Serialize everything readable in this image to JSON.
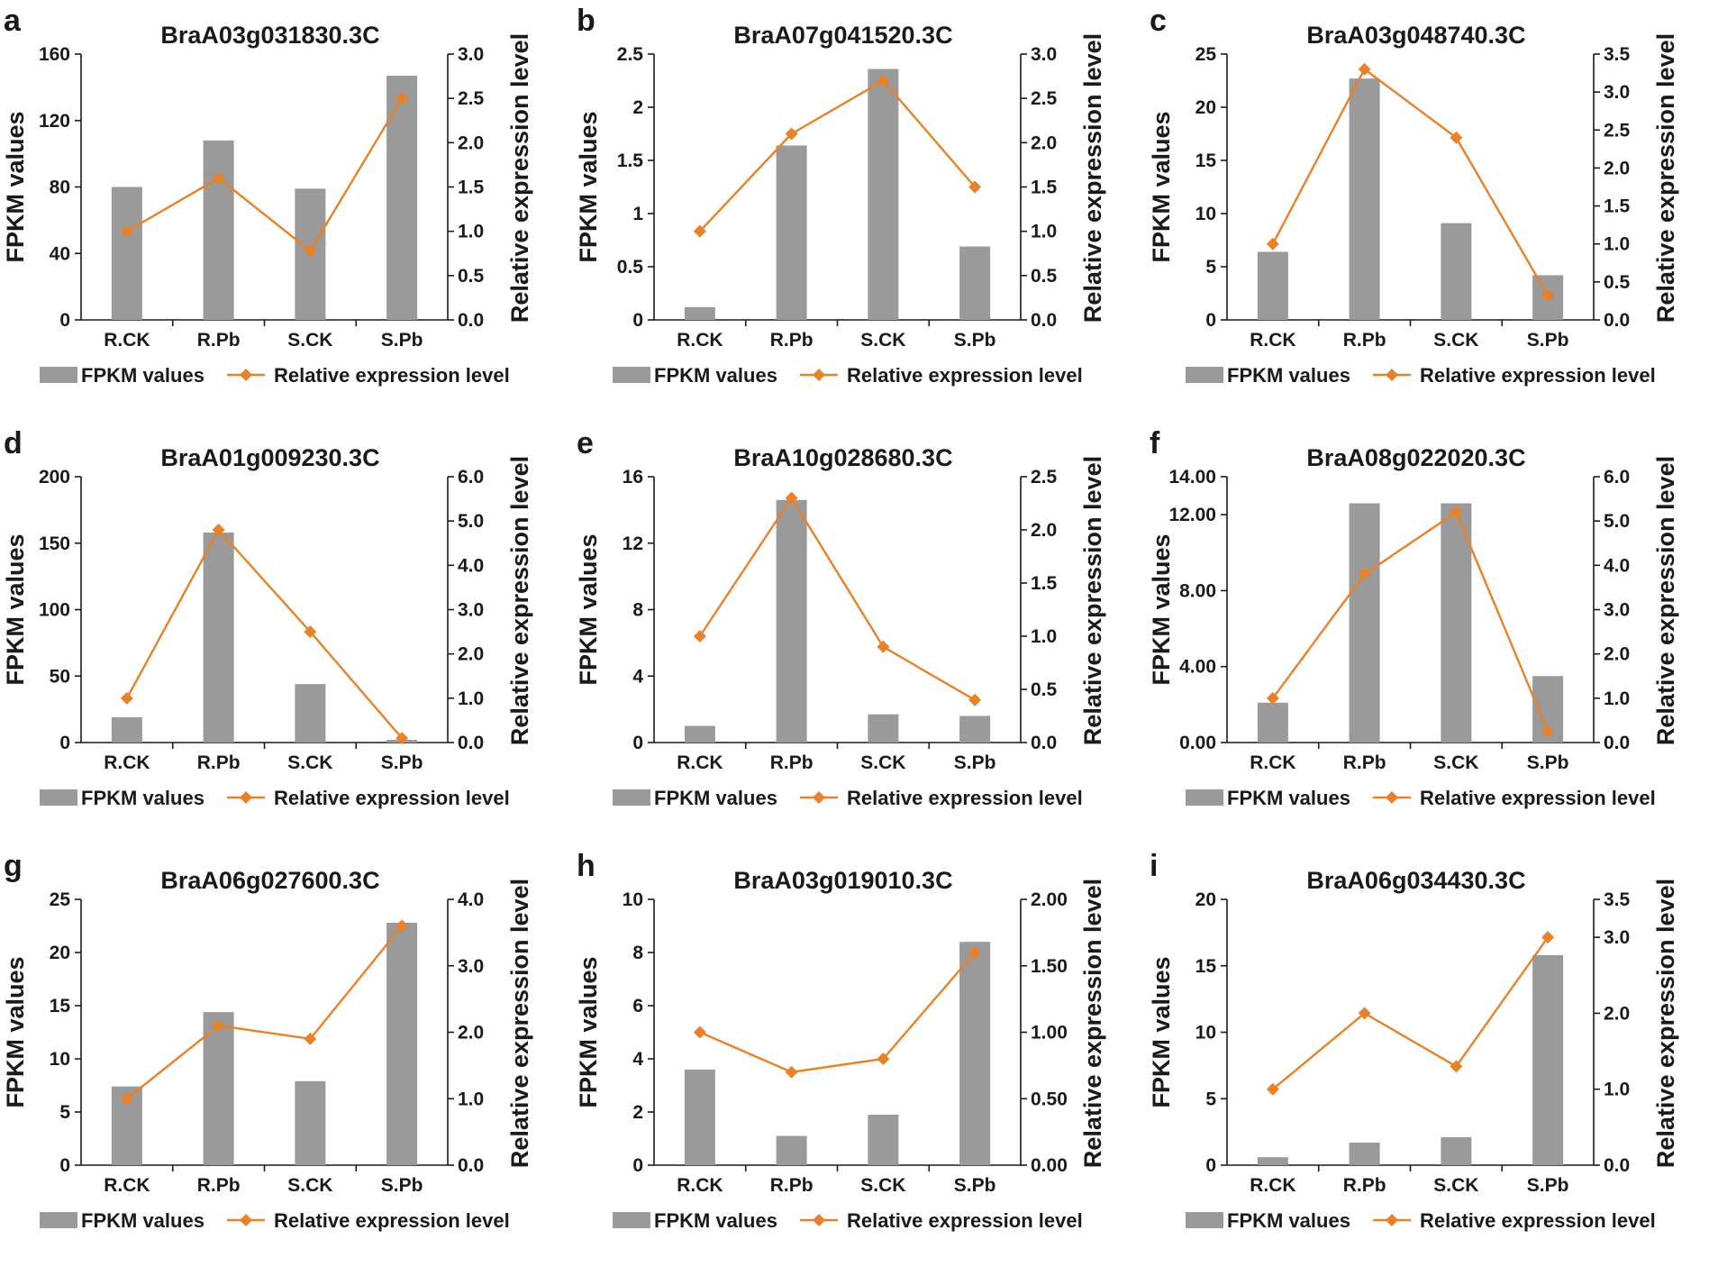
{
  "colors": {
    "bar": "#9a9a9a",
    "line": "#e8822a",
    "axis": "#1a1a1a"
  },
  "legend": {
    "bar_label": "FPKM values",
    "line_label": "Relative expression level"
  },
  "axis_labels": {
    "left": "FPKM values",
    "right": "Relative expression level"
  },
  "chart_data": [
    {
      "letter": "a",
      "type": "bar+line",
      "title": "BraA03g031830.3C",
      "categories": [
        "R.CK",
        "R.Pb",
        "S.CK",
        "S.Pb"
      ],
      "ylabel": "FPKM values",
      "y2label": "Relative expression level",
      "ylim": [
        0,
        160
      ],
      "yticks": [
        "0",
        "40",
        "80",
        "120",
        "160"
      ],
      "y2lim": [
        0,
        3
      ],
      "y2ticks": [
        "0.0",
        "0.5",
        "1.0",
        "1.5",
        "2.0",
        "2.5",
        "3.0"
      ],
      "series": [
        {
          "name": "FPKM values",
          "type": "bar",
          "values": [
            80,
            108,
            79,
            147
          ]
        },
        {
          "name": "Relative expression level",
          "type": "line",
          "values": [
            1.0,
            1.6,
            0.78,
            2.5
          ]
        }
      ]
    },
    {
      "letter": "b",
      "type": "bar+line",
      "title": "BraA07g041520.3C",
      "categories": [
        "R.CK",
        "R.Pb",
        "S.CK",
        "S.Pb"
      ],
      "ylabel": "FPKM values",
      "y2label": "Relative expression level",
      "ylim": [
        0,
        2.5
      ],
      "yticks": [
        "0",
        "0.5",
        "1",
        "1.5",
        "2",
        "2.5"
      ],
      "y2lim": [
        0,
        3
      ],
      "y2ticks": [
        "0.0",
        "0.5",
        "1.0",
        "1.5",
        "2.0",
        "2.5",
        "3.0"
      ],
      "series": [
        {
          "name": "FPKM values",
          "type": "bar",
          "values": [
            0.12,
            1.64,
            2.36,
            0.69
          ]
        },
        {
          "name": "Relative expression level",
          "type": "line",
          "values": [
            1.0,
            2.1,
            2.7,
            1.5
          ]
        }
      ]
    },
    {
      "letter": "c",
      "type": "bar+line",
      "title": "BraA03g048740.3C",
      "categories": [
        "R.CK",
        "R.Pb",
        "S.CK",
        "S.Pb"
      ],
      "ylabel": "FPKM values",
      "y2label": "Relative expression level",
      "ylim": [
        0,
        25
      ],
      "yticks": [
        "0",
        "5",
        "10",
        "15",
        "20",
        "25"
      ],
      "y2lim": [
        0,
        3.5
      ],
      "y2ticks": [
        "0.0",
        "0.5",
        "1.0",
        "1.5",
        "2.0",
        "2.5",
        "3.0",
        "3.5"
      ],
      "series": [
        {
          "name": "FPKM values",
          "type": "bar",
          "values": [
            6.4,
            22.7,
            9.1,
            4.2
          ]
        },
        {
          "name": "Relative expression level",
          "type": "line",
          "values": [
            1.0,
            3.3,
            2.4,
            0.32
          ]
        }
      ]
    },
    {
      "letter": "d",
      "type": "bar+line",
      "title": "BraA01g009230.3C",
      "categories": [
        "R.CK",
        "R.Pb",
        "S.CK",
        "S.Pb"
      ],
      "ylabel": "FPKM values",
      "y2label": "Relative expression level",
      "ylim": [
        0,
        200
      ],
      "yticks": [
        "0",
        "50",
        "100",
        "150",
        "200"
      ],
      "y2lim": [
        0,
        6
      ],
      "y2ticks": [
        "0.0",
        "1.0",
        "2.0",
        "3.0",
        "4.0",
        "5.0",
        "6.0"
      ],
      "series": [
        {
          "name": "FPKM values",
          "type": "bar",
          "values": [
            19,
            158,
            44,
            2
          ]
        },
        {
          "name": "Relative expression level",
          "type": "line",
          "values": [
            1.0,
            4.8,
            2.5,
            0.1
          ]
        }
      ]
    },
    {
      "letter": "e",
      "type": "bar+line",
      "title": "BraA10g028680.3C",
      "categories": [
        "R.CK",
        "R.Pb",
        "S.CK",
        "S.Pb"
      ],
      "ylabel": "FPKM values",
      "y2label": "Relative expression level",
      "ylim": [
        0,
        16
      ],
      "yticks": [
        "0",
        "4",
        "8",
        "12",
        "16"
      ],
      "y2lim": [
        0,
        2.5
      ],
      "y2ticks": [
        "0.0",
        "0.5",
        "1.0",
        "1.5",
        "2.0",
        "2.5"
      ],
      "series": [
        {
          "name": "FPKM values",
          "type": "bar",
          "values": [
            1.0,
            14.6,
            1.7,
            1.6
          ]
        },
        {
          "name": "Relative expression level",
          "type": "line",
          "values": [
            1.0,
            2.3,
            0.9,
            0.4
          ]
        }
      ]
    },
    {
      "letter": "f",
      "type": "bar+line",
      "title": "BraA08g022020.3C",
      "categories": [
        "R.CK",
        "R.Pb",
        "S.CK",
        "S.Pb"
      ],
      "ylabel": "FPKM values",
      "y2label": "Relative expression level",
      "ylim": [
        0,
        14
      ],
      "yticks": [
        "0.00",
        "4.00",
        "8.00",
        "12.00",
        "14.00"
      ],
      "y2lim": [
        0,
        6
      ],
      "y2ticks": [
        "0.0",
        "1.0",
        "2.0",
        "3.0",
        "4.0",
        "5.0",
        "6.0"
      ],
      "series": [
        {
          "name": "FPKM values",
          "type": "bar",
          "values": [
            2.1,
            12.6,
            12.6,
            3.5
          ]
        },
        {
          "name": "Relative expression level",
          "type": "line",
          "values": [
            1.0,
            3.8,
            5.2,
            0.25
          ]
        }
      ]
    },
    {
      "letter": "g",
      "type": "bar+line",
      "title": "BraA06g027600.3C",
      "categories": [
        "R.CK",
        "R.Pb",
        "S.CK",
        "S.Pb"
      ],
      "ylabel": "FPKM values",
      "y2label": "Relative expression level",
      "ylim": [
        0,
        25
      ],
      "yticks": [
        "0",
        "5",
        "10",
        "15",
        "20",
        "25"
      ],
      "y2lim": [
        0,
        4
      ],
      "y2ticks": [
        "0.0",
        "1.0",
        "2.0",
        "3.0",
        "4.0"
      ],
      "series": [
        {
          "name": "FPKM values",
          "type": "bar",
          "values": [
            7.4,
            14.4,
            7.9,
            22.8
          ]
        },
        {
          "name": "Relative expression level",
          "type": "line",
          "values": [
            1.0,
            2.1,
            1.9,
            3.6
          ]
        }
      ]
    },
    {
      "letter": "h",
      "type": "bar+line",
      "title": "BraA03g019010.3C",
      "categories": [
        "R.CK",
        "R.Pb",
        "S.CK",
        "S.Pb"
      ],
      "ylabel": "FPKM values",
      "y2label": "Relative expression level",
      "ylim": [
        0,
        10
      ],
      "yticks": [
        "0",
        "2",
        "4",
        "6",
        "8",
        "10"
      ],
      "y2lim": [
        0,
        2
      ],
      "y2ticks": [
        "0.00",
        "0.50",
        "1.00",
        "1.50",
        "2.00"
      ],
      "series": [
        {
          "name": "FPKM values",
          "type": "bar",
          "values": [
            3.6,
            1.1,
            1.9,
            8.4
          ]
        },
        {
          "name": "Relative expression level",
          "type": "line",
          "values": [
            1.0,
            0.7,
            0.8,
            1.6
          ]
        }
      ]
    },
    {
      "letter": "i",
      "type": "bar+line",
      "title": "BraA06g034430.3C",
      "categories": [
        "R.CK",
        "R.Pb",
        "S.CK",
        "S.Pb"
      ],
      "ylabel": "FPKM values",
      "y2label": "Relative expression level",
      "ylim": [
        0,
        20
      ],
      "yticks": [
        "0",
        "5",
        "10",
        "15",
        "20"
      ],
      "y2lim": [
        0,
        3.5
      ],
      "y2ticks": [
        "0.0",
        "1.0",
        "2.0",
        "3.0",
        "3.5"
      ],
      "y2tickvals": [
        0,
        1,
        2,
        3,
        3.5
      ],
      "series": [
        {
          "name": "FPKM values",
          "type": "bar",
          "values": [
            0.6,
            1.7,
            2.1,
            15.8
          ]
        },
        {
          "name": "Relative expression level",
          "type": "line",
          "values": [
            1.0,
            2.0,
            1.3,
            3.0
          ]
        }
      ]
    }
  ]
}
